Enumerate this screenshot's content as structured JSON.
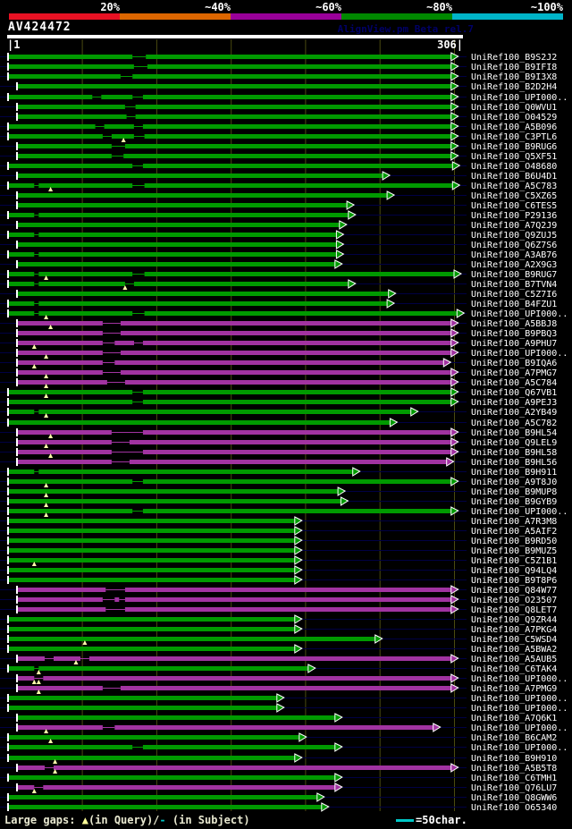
{
  "header": {
    "title": "AV424472",
    "watermark": "AlignView.pm Beta rel.7"
  },
  "scale": {
    "segments": [
      {
        "label": "20%",
        "color": "#e81123"
      },
      {
        "label": "~40%",
        "color": "#dd6600"
      },
      {
        "label": "~60%",
        "color": "#990099"
      },
      {
        "label": "~80%",
        "color": "#008800"
      },
      {
        "label": "~100%",
        "color": "#00b4c8"
      }
    ]
  },
  "legend": {
    "prefix": "Large gaps: ",
    "query_marker": "▲",
    "query_text": "(in Query)/",
    "subject_marker": "-",
    "subject_text": " (in Subject)",
    "scale_text": "=50char."
  },
  "chart_data": {
    "type": "bar",
    "title": "AV424472",
    "xlabel": "query position",
    "xlim": [
      1,
      306
    ],
    "ruler": {
      "start": "1",
      "end": "306"
    },
    "gridlines_x": [
      50,
      100,
      150,
      200,
      250,
      300
    ],
    "colors": {
      "bin80": "#009a00",
      "bin60": "#a133a1",
      "baseline": "#000044",
      "grid": "#4a4a10",
      "triangle": "#ffffaa",
      "tick": "#ffffff"
    },
    "rows": [
      {
        "label": "UniRef100_B9S2J2",
        "bin": "80",
        "qs": 1,
        "qe": 298,
        "gaps": [
          [
            84,
            93
          ]
        ],
        "tris": []
      },
      {
        "label": "UniRef100_B9IFI8",
        "bin": "80",
        "qs": 1,
        "qe": 298,
        "gaps": [
          [
            85,
            94
          ]
        ],
        "tris": []
      },
      {
        "label": "UniRef100_B9I3X8",
        "bin": "80",
        "qs": 1,
        "qe": 298,
        "gaps": [
          [
            76,
            84
          ]
        ],
        "tris": []
      },
      {
        "label": "UniRef100_B2D2H4",
        "bin": "80",
        "qs": 7,
        "qe": 298,
        "gaps": [],
        "tris": []
      },
      {
        "label": "UniRef100_UPI000..",
        "bin": "80",
        "qs": 1,
        "qe": 298,
        "gaps": [
          [
            57,
            63
          ],
          [
            84,
            91
          ]
        ],
        "tris": []
      },
      {
        "label": "UniRef100_Q0WVU1",
        "bin": "80",
        "qs": 7,
        "qe": 298,
        "gaps": [
          [
            79,
            86
          ]
        ],
        "tris": []
      },
      {
        "label": "UniRef100_O04529",
        "bin": "80",
        "qs": 7,
        "qe": 298,
        "gaps": [
          [
            80,
            86
          ]
        ],
        "tris": []
      },
      {
        "label": "UniRef100_A5B096",
        "bin": "80",
        "qs": 1,
        "qe": 298,
        "gaps": [
          [
            59,
            65
          ],
          [
            85,
            91
          ]
        ],
        "tris": []
      },
      {
        "label": "UniRef100_C3PTL6",
        "bin": "80",
        "qs": 1,
        "qe": 298,
        "gaps": [
          [
            64,
            70
          ],
          [
            85,
            92
          ]
        ],
        "tris": [
          78
        ]
      },
      {
        "label": "UniRef100_B9RUG6",
        "bin": "80",
        "qs": 7,
        "qe": 298,
        "gaps": [
          [
            70,
            79
          ]
        ],
        "tris": []
      },
      {
        "label": "UniRef100_Q5XF51",
        "bin": "80",
        "qs": 7,
        "qe": 298,
        "gaps": [
          [
            70,
            78
          ]
        ],
        "tris": []
      },
      {
        "label": "UniRef100_O48680",
        "bin": "80",
        "qs": 1,
        "qe": 299,
        "gaps": [
          [
            84,
            91
          ]
        ],
        "tris": []
      },
      {
        "label": "UniRef100_B6U4D1",
        "bin": "80",
        "qs": 7,
        "qe": 252,
        "gaps": [],
        "tris": []
      },
      {
        "label": "UniRef100_A5C783",
        "bin": "80",
        "qs": 1,
        "qe": 299,
        "gaps": [
          [
            18,
            21
          ],
          [
            84,
            92
          ]
        ],
        "tris": [
          29
        ]
      },
      {
        "label": "UniRef100_C5XZ65",
        "bin": "80",
        "qs": 7,
        "qe": 255,
        "gaps": [],
        "tris": []
      },
      {
        "label": "UniRef100_C6TES5",
        "bin": "80",
        "qs": 7,
        "qe": 228,
        "gaps": [],
        "tris": []
      },
      {
        "label": "UniRef100_P29136",
        "bin": "80",
        "qs": 1,
        "qe": 229,
        "gaps": [
          [
            18,
            21
          ]
        ],
        "tris": []
      },
      {
        "label": "UniRef100_A7Q2J9",
        "bin": "80",
        "qs": 7,
        "qe": 223,
        "gaps": [],
        "tris": []
      },
      {
        "label": "UniRef100_Q9ZUJ5",
        "bin": "80",
        "qs": 1,
        "qe": 221,
        "gaps": [
          [
            18,
            21
          ]
        ],
        "tris": []
      },
      {
        "label": "UniRef100_Q6Z7S6",
        "bin": "80",
        "qs": 7,
        "qe": 221,
        "gaps": [],
        "tris": []
      },
      {
        "label": "UniRef100_A3AB76",
        "bin": "80",
        "qs": 1,
        "qe": 221,
        "gaps": [
          [
            18,
            21
          ]
        ],
        "tris": []
      },
      {
        "label": "UniRef100_A2X9G3",
        "bin": "80",
        "qs": 7,
        "qe": 220,
        "gaps": [],
        "tris": []
      },
      {
        "label": "UniRef100_B9RUG7",
        "bin": "80",
        "qs": 1,
        "qe": 300,
        "gaps": [
          [
            18,
            21
          ],
          [
            84,
            92
          ]
        ],
        "tris": [
          26
        ]
      },
      {
        "label": "UniRef100_B7TVN4",
        "bin": "80",
        "qs": 1,
        "qe": 229,
        "gaps": [
          [
            18,
            21
          ],
          [
            79,
            85
          ]
        ],
        "tris": [
          79
        ]
      },
      {
        "label": "UniRef100_C5Z7I6",
        "bin": "80",
        "qs": 7,
        "qe": 256,
        "gaps": [],
        "tris": []
      },
      {
        "label": "UniRef100_B4FZU1",
        "bin": "80",
        "qs": 1,
        "qe": 255,
        "gaps": [
          [
            18,
            21
          ]
        ],
        "tris": []
      },
      {
        "label": "UniRef100_UPI000..",
        "bin": "80",
        "qs": 1,
        "qe": 302,
        "gaps": [
          [
            18,
            21
          ],
          [
            84,
            92
          ]
        ],
        "tris": [
          26
        ]
      },
      {
        "label": "UniRef100_A5BBJ8",
        "bin": "60",
        "qs": 7,
        "qe": 298,
        "gaps": [
          [
            64,
            76
          ]
        ],
        "tris": [
          29
        ]
      },
      {
        "label": "UniRef100_B9PBQ3",
        "bin": "60",
        "qs": 7,
        "qe": 298,
        "gaps": [
          [
            64,
            76
          ]
        ],
        "tris": []
      },
      {
        "label": "UniRef100_A9PHU7",
        "bin": "60",
        "qs": 7,
        "qe": 298,
        "gaps": [
          [
            64,
            72
          ],
          [
            85,
            91
          ]
        ],
        "tris": [
          18
        ]
      },
      {
        "label": "UniRef100_UPI000..",
        "bin": "60",
        "qs": 7,
        "qe": 298,
        "gaps": [
          [
            64,
            76
          ]
        ],
        "tris": [
          26
        ]
      },
      {
        "label": "UniRef100_B9IQA6",
        "bin": "60",
        "qs": 7,
        "qe": 293,
        "gaps": [
          [
            64,
            72
          ]
        ],
        "tris": [
          18
        ]
      },
      {
        "label": "UniRef100_A7PMG7",
        "bin": "60",
        "qs": 7,
        "qe": 298,
        "gaps": [
          [
            64,
            76
          ]
        ],
        "tris": [
          26
        ]
      },
      {
        "label": "UniRef100_A5C784",
        "bin": "60",
        "qs": 7,
        "qe": 298,
        "gaps": [
          [
            67,
            79
          ]
        ],
        "tris": [
          26
        ]
      },
      {
        "label": "UniRef100_Q67VB1",
        "bin": "80",
        "qs": 1,
        "qe": 298,
        "gaps": [
          [
            84,
            91
          ]
        ],
        "tris": [
          26
        ]
      },
      {
        "label": "UniRef100_A9PEJ3",
        "bin": "80",
        "qs": 1,
        "qe": 298,
        "gaps": [
          [
            84,
            91
          ]
        ],
        "tris": []
      },
      {
        "label": "UniRef100_A2YB49",
        "bin": "80",
        "qs": 1,
        "qe": 271,
        "gaps": [
          [
            18,
            21
          ]
        ],
        "tris": [
          26
        ]
      },
      {
        "label": "UniRef100_A5C782",
        "bin": "80",
        "qs": 1,
        "qe": 257,
        "gaps": [],
        "tris": []
      },
      {
        "label": "UniRef100_B9HL54",
        "bin": "60",
        "qs": 7,
        "qe": 298,
        "gaps": [
          [
            70,
            91
          ]
        ],
        "tris": [
          29
        ]
      },
      {
        "label": "UniRef100_Q9LEL9",
        "bin": "60",
        "qs": 7,
        "qe": 298,
        "gaps": [
          [
            70,
            82
          ]
        ],
        "tris": [
          26
        ]
      },
      {
        "label": "UniRef100_B9HL58",
        "bin": "60",
        "qs": 7,
        "qe": 298,
        "gaps": [
          [
            70,
            91
          ]
        ],
        "tris": [
          29
        ]
      },
      {
        "label": "UniRef100_B9HL56",
        "bin": "60",
        "qs": 7,
        "qe": 295,
        "gaps": [
          [
            70,
            82
          ]
        ],
        "tris": []
      },
      {
        "label": "UniRef100_B9H911",
        "bin": "80",
        "qs": 1,
        "qe": 232,
        "gaps": [
          [
            18,
            21
          ]
        ],
        "tris": []
      },
      {
        "label": "UniRef100_A9T8J0",
        "bin": "80",
        "qs": 1,
        "qe": 298,
        "gaps": [
          [
            84,
            91
          ]
        ],
        "tris": [
          26
        ]
      },
      {
        "label": "UniRef100_B9MUP8",
        "bin": "80",
        "qs": 1,
        "qe": 222,
        "gaps": [],
        "tris": [
          26
        ]
      },
      {
        "label": "UniRef100_B9GYB9",
        "bin": "80",
        "qs": 1,
        "qe": 224,
        "gaps": [],
        "tris": [
          26
        ]
      },
      {
        "label": "UniRef100_UPI000..",
        "bin": "80",
        "qs": 1,
        "qe": 298,
        "gaps": [
          [
            84,
            91
          ]
        ],
        "tris": [
          26
        ]
      },
      {
        "label": "UniRef100_A7R3M8",
        "bin": "80",
        "qs": 1,
        "qe": 193,
        "gaps": [],
        "tris": []
      },
      {
        "label": "UniRef100_A5AIF2",
        "bin": "80",
        "qs": 1,
        "qe": 193,
        "gaps": [],
        "tris": []
      },
      {
        "label": "UniRef100_B9RD50",
        "bin": "80",
        "qs": 1,
        "qe": 193,
        "gaps": [],
        "tris": []
      },
      {
        "label": "UniRef100_B9MUZ5",
        "bin": "80",
        "qs": 1,
        "qe": 193,
        "gaps": [],
        "tris": []
      },
      {
        "label": "UniRef100_C5Z1B1",
        "bin": "80",
        "qs": 1,
        "qe": 193,
        "gaps": [],
        "tris": [
          18
        ]
      },
      {
        "label": "UniRef100_Q94LQ4",
        "bin": "80",
        "qs": 1,
        "qe": 193,
        "gaps": [],
        "tris": []
      },
      {
        "label": "UniRef100_B9T8P6",
        "bin": "80",
        "qs": 1,
        "qe": 193,
        "gaps": [],
        "tris": []
      },
      {
        "label": "UniRef100_Q84W77",
        "bin": "60",
        "qs": 7,
        "qe": 298,
        "gaps": [
          [
            66,
            79
          ]
        ],
        "tris": []
      },
      {
        "label": "UniRef100_O23507",
        "bin": "60",
        "qs": 7,
        "qe": 298,
        "gaps": [
          [
            64,
            72
          ],
          [
            75,
            79
          ]
        ],
        "tris": []
      },
      {
        "label": "UniRef100_Q8LET7",
        "bin": "60",
        "qs": 7,
        "qe": 298,
        "gaps": [
          [
            66,
            79
          ]
        ],
        "tris": []
      },
      {
        "label": "UniRef100_Q9ZR44",
        "bin": "80",
        "qs": 1,
        "qe": 193,
        "gaps": [],
        "tris": []
      },
      {
        "label": "UniRef100_A7PKG4",
        "bin": "80",
        "qs": 1,
        "qe": 193,
        "gaps": [],
        "tris": []
      },
      {
        "label": "UniRef100_C5WSD4",
        "bin": "80",
        "qs": 1,
        "qe": 247,
        "gaps": [],
        "tris": [
          52
        ]
      },
      {
        "label": "UniRef100_A5BWA2",
        "bin": "80",
        "qs": 1,
        "qe": 193,
        "gaps": [],
        "tris": []
      },
      {
        "label": "UniRef100_A5AUB5",
        "bin": "60",
        "qs": 7,
        "qe": 298,
        "gaps": [
          [
            25,
            31
          ],
          [
            49,
            55
          ]
        ],
        "tris": [
          46
        ]
      },
      {
        "label": "UniRef100_C6TAK4",
        "bin": "80",
        "qs": 1,
        "qe": 202,
        "gaps": [
          [
            18,
            21
          ]
        ],
        "tris": [
          21
        ]
      },
      {
        "label": "UniRef100_UPI000..",
        "bin": "60",
        "qs": 7,
        "qe": 298,
        "gaps": [
          [
            18,
            24
          ]
        ],
        "tris": [
          18,
          21
        ]
      },
      {
        "label": "UniRef100_A7PMG9",
        "bin": "60",
        "qs": 7,
        "qe": 298,
        "gaps": [
          [
            64,
            76
          ]
        ],
        "tris": [
          21
        ]
      },
      {
        "label": "UniRef100_UPI000..",
        "bin": "80",
        "qs": 1,
        "qe": 181,
        "gaps": [],
        "tris": []
      },
      {
        "label": "UniRef100_UPI000..",
        "bin": "80",
        "qs": 1,
        "qe": 181,
        "gaps": [],
        "tris": []
      },
      {
        "label": "UniRef100_A7Q6K1",
        "bin": "80",
        "qs": 7,
        "qe": 220,
        "gaps": [],
        "tris": []
      },
      {
        "label": "UniRef100_UPI000..",
        "bin": "60",
        "qs": 7,
        "qe": 286,
        "gaps": [
          [
            64,
            72
          ]
        ],
        "tris": [
          26
        ]
      },
      {
        "label": "UniRef100_B6CAM2",
        "bin": "80",
        "qs": 1,
        "qe": 196,
        "gaps": [],
        "tris": [
          29
        ]
      },
      {
        "label": "UniRef100_UPI000..",
        "bin": "80",
        "qs": 1,
        "qe": 220,
        "gaps": [
          [
            84,
            91
          ]
        ],
        "tris": []
      },
      {
        "label": "UniRef100_B9H910",
        "bin": "80",
        "qs": 1,
        "qe": 193,
        "gaps": [],
        "tris": [
          32
        ]
      },
      {
        "label": "UniRef100_A5B5T8",
        "bin": "60",
        "qs": 7,
        "qe": 298,
        "gaps": [
          [
            25,
            31
          ]
        ],
        "tris": [
          32
        ]
      },
      {
        "label": "UniRef100_C6TMH1",
        "bin": "80",
        "qs": 1,
        "qe": 220,
        "gaps": [],
        "tris": []
      },
      {
        "label": "UniRef100_Q76LU7",
        "bin": "60",
        "qs": 7,
        "qe": 220,
        "gaps": [
          [
            18,
            24
          ]
        ],
        "tris": [
          18
        ]
      },
      {
        "label": "UniRef100_Q8GWW6",
        "bin": "80",
        "qs": 1,
        "qe": 208,
        "gaps": [],
        "tris": []
      },
      {
        "label": "UniRef100_O65340",
        "bin": "80",
        "qs": 1,
        "qe": 211,
        "gaps": [],
        "tris": []
      }
    ]
  }
}
